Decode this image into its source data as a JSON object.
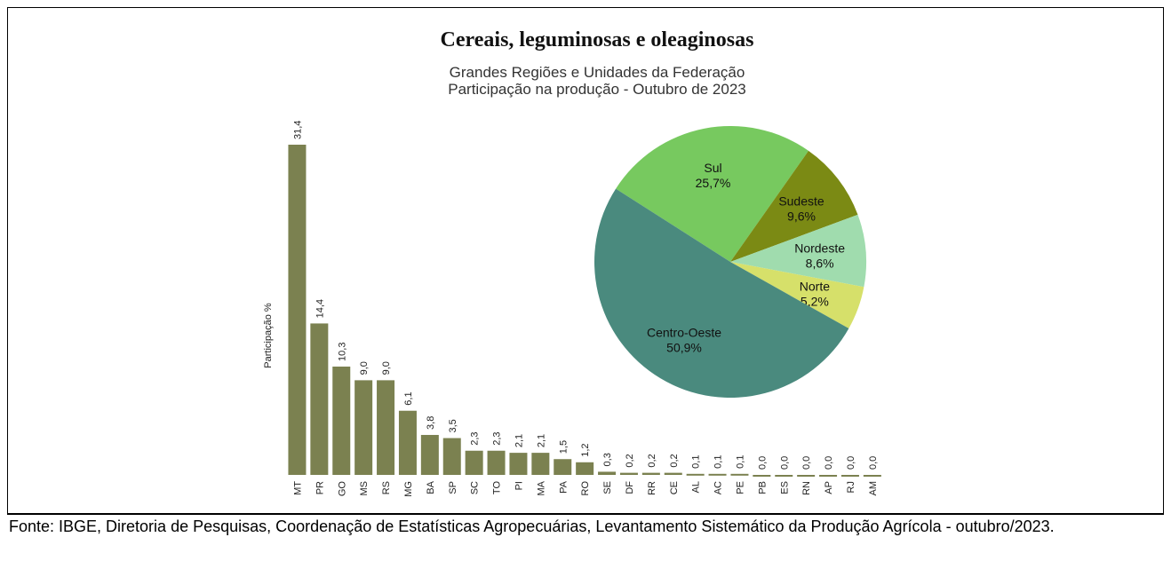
{
  "chart_data": [
    {
      "type": "bar",
      "title": "Cereais, leguminosas e oleaginosas",
      "subtitle": [
        "Grandes Regiões e Unidades da Federação",
        "Participação na produção - Outubro de 2023"
      ],
      "ylabel": "Participação %",
      "color": "#7b8150",
      "categories": [
        "MT",
        "PR",
        "GO",
        "MS",
        "RS",
        "MG",
        "BA",
        "SP",
        "SC",
        "TO",
        "PI",
        "MA",
        "PA",
        "RO",
        "SE",
        "DF",
        "RR",
        "CE",
        "AL",
        "AC",
        "PE",
        "PB",
        "ES",
        "RN",
        "AP",
        "RJ",
        "AM"
      ],
      "values": [
        31.4,
        14.4,
        10.3,
        9.0,
        9.0,
        6.1,
        3.8,
        3.5,
        2.3,
        2.3,
        2.1,
        2.1,
        1.5,
        1.2,
        0.3,
        0.2,
        0.2,
        0.2,
        0.1,
        0.1,
        0.1,
        0.0,
        0.0,
        0.0,
        0.0,
        0.0,
        0.0
      ],
      "value_labels": [
        "31,4",
        "14,4",
        "10,3",
        "9,0",
        "9,0",
        "6,1",
        "3,8",
        "3,5",
        "2,3",
        "2,3",
        "2,1",
        "2,1",
        "1,5",
        "1,2",
        "0,3",
        "0,2",
        "0,2",
        "0,2",
        "0,1",
        "0,1",
        "0,1",
        "0,0",
        "0,0",
        "0,0",
        "0,0",
        "0,0",
        "0,0"
      ]
    },
    {
      "type": "pie",
      "categories": [
        "Sul",
        "Sudeste",
        "Nordeste",
        "Norte",
        "Centro-Oeste"
      ],
      "values": [
        25.7,
        9.6,
        8.6,
        5.2,
        50.9
      ],
      "value_labels": [
        "25,7%",
        "9,6%",
        "8,6%",
        "5,2%",
        "50,9%"
      ],
      "colors": [
        "#77c95f",
        "#7b8a14",
        "#a0dcae",
        "#d6e06a",
        "#4a8a7e"
      ]
    }
  ],
  "footer": "Fonte: IBGE, Diretoria de Pesquisas, Coordenação de Estatísticas Agropecuárias, Levantamento Sistemático da Produção Agrícola - outubro/2023."
}
